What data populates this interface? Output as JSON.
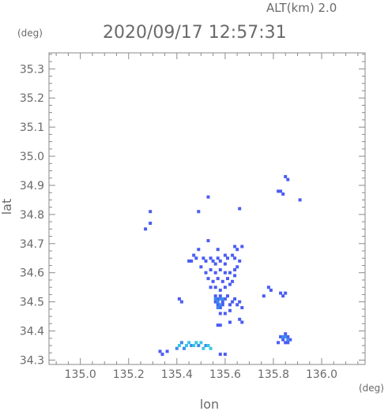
{
  "chart_data": {
    "type": "scatter",
    "title": "2020/09/17 12:57:31",
    "altitude_label": "ALT(km) 2.0",
    "xlabel": "lon",
    "ylabel": "lat",
    "x_unit": "(deg)",
    "y_unit": "(deg)",
    "xlim": [
      134.87,
      136.18
    ],
    "ylim": [
      34.285,
      35.355
    ],
    "xticks": [
      "135.0",
      "135.2",
      "135.4",
      "135.6",
      "135.8",
      "136.0"
    ],
    "yticks": [
      "34.3",
      "34.4",
      "34.5",
      "34.6",
      "34.7",
      "34.8",
      "34.9",
      "35.0",
      "35.1",
      "35.2",
      "35.3"
    ],
    "grid": false,
    "colors": {
      "blue": "#4b5cf2",
      "light_blue": "#3c8bf0",
      "cyan": "#36c7e4",
      "axis": "#8a8a8a"
    },
    "series": [
      {
        "color": "#4b5cf2",
        "points": [
          [
            135.85,
            34.93
          ],
          [
            135.86,
            34.92
          ],
          [
            135.83,
            34.88
          ],
          [
            135.84,
            34.87
          ],
          [
            135.82,
            34.88
          ],
          [
            135.91,
            34.85
          ],
          [
            135.53,
            34.86
          ],
          [
            135.66,
            34.82
          ],
          [
            135.49,
            34.81
          ],
          [
            135.29,
            34.77
          ],
          [
            135.27,
            34.75
          ],
          [
            135.29,
            34.81
          ],
          [
            135.53,
            34.71
          ],
          [
            135.64,
            34.69
          ],
          [
            135.67,
            34.69
          ],
          [
            135.65,
            34.68
          ],
          [
            135.57,
            34.68
          ],
          [
            135.49,
            34.68
          ],
          [
            135.45,
            34.64
          ],
          [
            135.46,
            34.64
          ],
          [
            135.47,
            34.66
          ],
          [
            135.48,
            34.65
          ],
          [
            135.51,
            34.65
          ],
          [
            135.52,
            34.64
          ],
          [
            135.54,
            34.65
          ],
          [
            135.55,
            34.64
          ],
          [
            135.57,
            34.65
          ],
          [
            135.58,
            34.64
          ],
          [
            135.6,
            34.66
          ],
          [
            135.61,
            34.65
          ],
          [
            135.63,
            34.66
          ],
          [
            135.64,
            34.65
          ],
          [
            135.66,
            34.64
          ],
          [
            135.5,
            34.62
          ],
          [
            135.52,
            34.6
          ],
          [
            135.54,
            34.61
          ],
          [
            135.56,
            34.6
          ],
          [
            135.58,
            34.61
          ],
          [
            135.6,
            34.6
          ],
          [
            135.62,
            34.6
          ],
          [
            135.64,
            34.61
          ],
          [
            135.53,
            34.58
          ],
          [
            135.55,
            34.57
          ],
          [
            135.57,
            34.58
          ],
          [
            135.59,
            34.57
          ],
          [
            135.61,
            34.58
          ],
          [
            135.63,
            34.57
          ],
          [
            135.64,
            34.59
          ],
          [
            135.54,
            34.55
          ],
          [
            135.56,
            34.55
          ],
          [
            135.58,
            34.54
          ],
          [
            135.6,
            34.55
          ],
          [
            135.62,
            34.56
          ],
          [
            135.56,
            34.52
          ],
          [
            135.57,
            34.51
          ],
          [
            135.58,
            34.52
          ],
          [
            135.59,
            34.5
          ],
          [
            135.6,
            34.51
          ],
          [
            135.61,
            34.52
          ],
          [
            135.57,
            34.49
          ],
          [
            135.58,
            34.48
          ],
          [
            135.59,
            34.49
          ],
          [
            135.56,
            34.5
          ],
          [
            135.62,
            34.49
          ],
          [
            135.63,
            34.5
          ],
          [
            135.64,
            34.51
          ],
          [
            135.65,
            34.49
          ],
          [
            135.66,
            34.5
          ],
          [
            135.67,
            34.48
          ],
          [
            135.62,
            34.47
          ],
          [
            135.6,
            34.46
          ],
          [
            135.58,
            34.46
          ],
          [
            135.66,
            34.44
          ],
          [
            135.67,
            34.43
          ],
          [
            135.62,
            34.43
          ],
          [
            135.57,
            34.42
          ],
          [
            135.58,
            34.42
          ],
          [
            135.41,
            34.51
          ],
          [
            135.42,
            34.5
          ],
          [
            135.78,
            34.55
          ],
          [
            135.79,
            34.54
          ],
          [
            135.83,
            34.53
          ],
          [
            135.84,
            34.52
          ],
          [
            135.85,
            34.53
          ],
          [
            135.76,
            34.52
          ],
          [
            135.85,
            34.39
          ],
          [
            135.86,
            34.38
          ],
          [
            135.84,
            34.37
          ],
          [
            135.85,
            34.36
          ],
          [
            135.83,
            34.38
          ],
          [
            135.87,
            34.37
          ],
          [
            135.86,
            34.36
          ],
          [
            135.82,
            34.36
          ],
          [
            135.33,
            34.33
          ],
          [
            135.34,
            34.32
          ],
          [
            135.36,
            34.33
          ],
          [
            135.58,
            34.32
          ],
          [
            135.6,
            34.32
          ],
          [
            135.6,
            34.63
          ],
          [
            135.65,
            34.62
          ],
          [
            135.56,
            34.63
          ]
        ]
      },
      {
        "color": "#3c8bf0",
        "points": [
          [
            135.57,
            34.5
          ],
          [
            135.58,
            34.51
          ],
          [
            135.59,
            34.51
          ],
          [
            135.58,
            34.49
          ],
          [
            135.56,
            34.51
          ],
          [
            135.57,
            34.48
          ],
          [
            135.85,
            34.38
          ],
          [
            135.84,
            34.38
          ],
          [
            135.86,
            34.37
          ],
          [
            135.4,
            34.34
          ],
          [
            135.43,
            34.34
          ],
          [
            135.46,
            34.35
          ],
          [
            135.49,
            34.35
          ],
          [
            135.52,
            34.35
          ],
          [
            135.42,
            34.36
          ]
        ]
      },
      {
        "color": "#36c7e4",
        "points": [
          [
            135.41,
            34.35
          ],
          [
            135.44,
            34.35
          ],
          [
            135.47,
            34.35
          ],
          [
            135.5,
            34.36
          ],
          [
            135.53,
            34.35
          ],
          [
            135.54,
            34.34
          ],
          [
            135.45,
            34.36
          ],
          [
            135.48,
            34.36
          ],
          [
            135.51,
            34.34
          ]
        ]
      }
    ]
  }
}
